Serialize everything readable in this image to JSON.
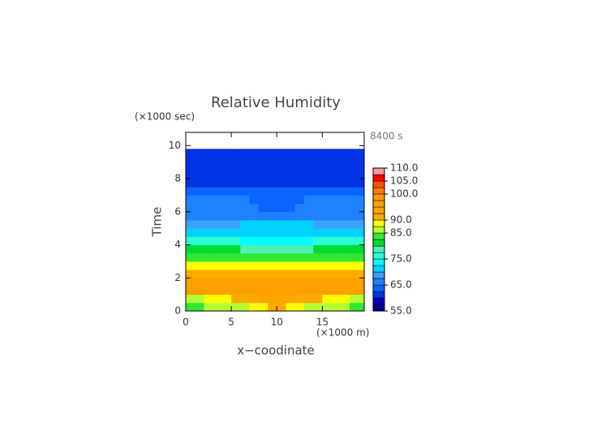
{
  "chart_data": {
    "type": "contour",
    "title": "Relative Humidity",
    "x_label": "x−coodinate",
    "y_label": "Time",
    "x_unit": "(×1000 m)",
    "y_unit": "(×1000 sec)",
    "annotation": "8400 s",
    "xlim": [
      0,
      19.6
    ],
    "ylim": [
      0,
      10.8
    ],
    "xticks": [
      0,
      5,
      10,
      15
    ],
    "yticks": [
      0,
      2,
      4,
      6,
      8,
      10
    ],
    "xbins": [
      0,
      1,
      2,
      3,
      4,
      5,
      6,
      7,
      8,
      9,
      10,
      11,
      12,
      13,
      14,
      15,
      16,
      17,
      18,
      19,
      19.6
    ],
    "tbins": [
      0,
      0.5,
      1,
      1.5,
      2,
      2.5,
      3,
      3.5,
      4,
      4.5,
      5,
      5.5,
      6,
      6.5,
      7,
      7.5,
      8,
      8.5,
      9,
      9.5,
      9.8
    ],
    "z": [
      [
        84,
        84,
        85,
        85,
        86,
        86,
        87,
        88,
        89,
        91,
        91,
        89,
        88,
        87,
        86,
        86,
        85,
        85,
        84,
        84
      ],
      [
        87,
        87,
        88,
        88,
        89,
        90,
        91,
        92,
        93,
        93,
        93,
        93,
        92,
        91,
        90,
        89,
        88,
        88,
        87,
        87
      ],
      [
        95,
        95,
        95,
        95,
        95,
        95,
        95,
        95,
        95,
        95,
        95,
        95,
        95,
        95,
        95,
        95,
        95,
        95,
        95,
        95
      ],
      [
        95,
        95,
        95,
        95,
        95,
        95,
        95,
        95,
        95,
        95,
        95,
        95,
        95,
        95,
        95,
        95,
        95,
        95,
        95,
        95
      ],
      [
        92,
        92,
        92,
        92,
        92,
        92,
        92,
        92,
        92,
        92,
        92,
        92,
        92,
        92,
        92,
        92,
        92,
        92,
        92,
        92
      ],
      [
        88,
        88,
        88,
        88,
        88,
        88,
        88,
        89,
        89,
        89,
        89,
        89,
        89,
        88,
        88,
        88,
        88,
        88,
        88,
        88
      ],
      [
        83,
        83,
        83,
        83,
        83,
        83,
        83,
        84,
        84,
        84,
        84,
        84,
        84,
        83,
        83,
        83,
        83,
        83,
        83,
        83
      ],
      [
        82,
        82,
        82,
        82,
        81,
        80,
        79,
        78,
        78,
        78,
        78,
        78,
        78,
        79,
        80,
        81,
        82,
        82,
        82,
        82
      ],
      [
        77,
        77,
        77,
        77,
        76,
        75,
        74,
        73,
        73,
        73,
        73,
        73,
        73,
        74,
        75,
        76,
        77,
        77,
        77,
        77
      ],
      [
        71,
        71,
        71,
        71,
        71,
        72,
        72,
        72,
        72,
        72,
        72,
        72,
        72,
        72,
        72,
        71,
        71,
        71,
        71,
        71
      ],
      [
        68,
        68,
        68,
        68,
        68,
        69,
        70,
        71,
        71,
        71,
        71,
        71,
        71,
        70,
        69,
        68,
        68,
        68,
        68,
        68
      ],
      [
        67,
        67,
        67,
        67,
        67,
        67,
        67,
        67,
        67,
        67,
        67,
        67,
        67,
        67,
        67,
        67,
        67,
        67,
        67,
        67
      ],
      [
        67,
        67,
        67,
        67,
        67,
        67,
        66,
        65,
        64,
        64,
        64,
        64,
        65,
        66,
        67,
        67,
        67,
        67,
        67,
        67
      ],
      [
        66,
        66,
        66,
        66,
        66,
        66,
        65,
        64,
        63,
        63,
        63,
        63,
        64,
        65,
        66,
        66,
        66,
        66,
        66,
        66
      ],
      [
        64,
        64,
        64,
        64,
        64,
        64,
        63,
        63,
        63,
        63,
        63,
        63,
        63,
        63,
        64,
        64,
        64,
        64,
        64,
        64
      ],
      [
        61,
        61,
        61,
        61,
        61,
        61,
        61,
        61,
        61,
        61,
        61,
        61,
        61,
        61,
        61,
        61,
        61,
        61,
        61,
        61
      ],
      [
        61,
        61,
        61,
        61,
        61,
        61,
        61,
        61,
        61,
        61,
        61,
        61,
        61,
        61,
        61,
        61,
        61,
        61,
        61,
        61
      ],
      [
        61,
        61,
        61,
        61,
        61,
        61,
        61,
        61,
        61,
        61,
        61,
        61,
        61,
        61,
        61,
        61,
        61,
        61,
        61,
        61
      ],
      [
        61,
        61,
        61,
        61,
        61,
        61,
        61,
        61,
        61,
        61,
        61,
        61,
        61,
        61,
        61,
        61,
        61,
        61,
        61,
        61
      ],
      [
        61,
        61,
        61,
        61,
        61,
        61,
        61,
        61,
        61,
        61,
        61,
        61,
        61,
        61,
        61,
        61,
        61,
        61,
        61,
        61
      ]
    ],
    "colorbar": {
      "levels": [
        55,
        57.5,
        60,
        62.5,
        65,
        67.5,
        70,
        72.5,
        75,
        77.5,
        80,
        82.5,
        85,
        87.5,
        90,
        92.5,
        95,
        97.5,
        100,
        102.5,
        105,
        107.5,
        110
      ],
      "colors": [
        "#00008b",
        "#0000c0",
        "#0032e6",
        "#0a64ff",
        "#1e82ff",
        "#3ca0ff",
        "#00d2ff",
        "#00ffff",
        "#28ffd2",
        "#50f0b4",
        "#00dc32",
        "#32e632",
        "#b4ff32",
        "#ffff00",
        "#ffaa00",
        "#ffa500",
        "#ffa000",
        "#ff9600",
        "#ff7800",
        "#ff5000",
        "#ff0000",
        "#ff9a9a"
      ],
      "ticks": [
        {
          "value": 55,
          "label": "55.0"
        },
        {
          "value": 65,
          "label": "65.0"
        },
        {
          "value": 75,
          "label": "75.0"
        },
        {
          "value": 85,
          "label": "85.0"
        },
        {
          "value": 90,
          "label": "90.0"
        },
        {
          "value": 100,
          "label": "100.0"
        },
        {
          "value": 105,
          "label": "105.0"
        },
        {
          "value": 110,
          "label": "110.0"
        }
      ]
    }
  }
}
